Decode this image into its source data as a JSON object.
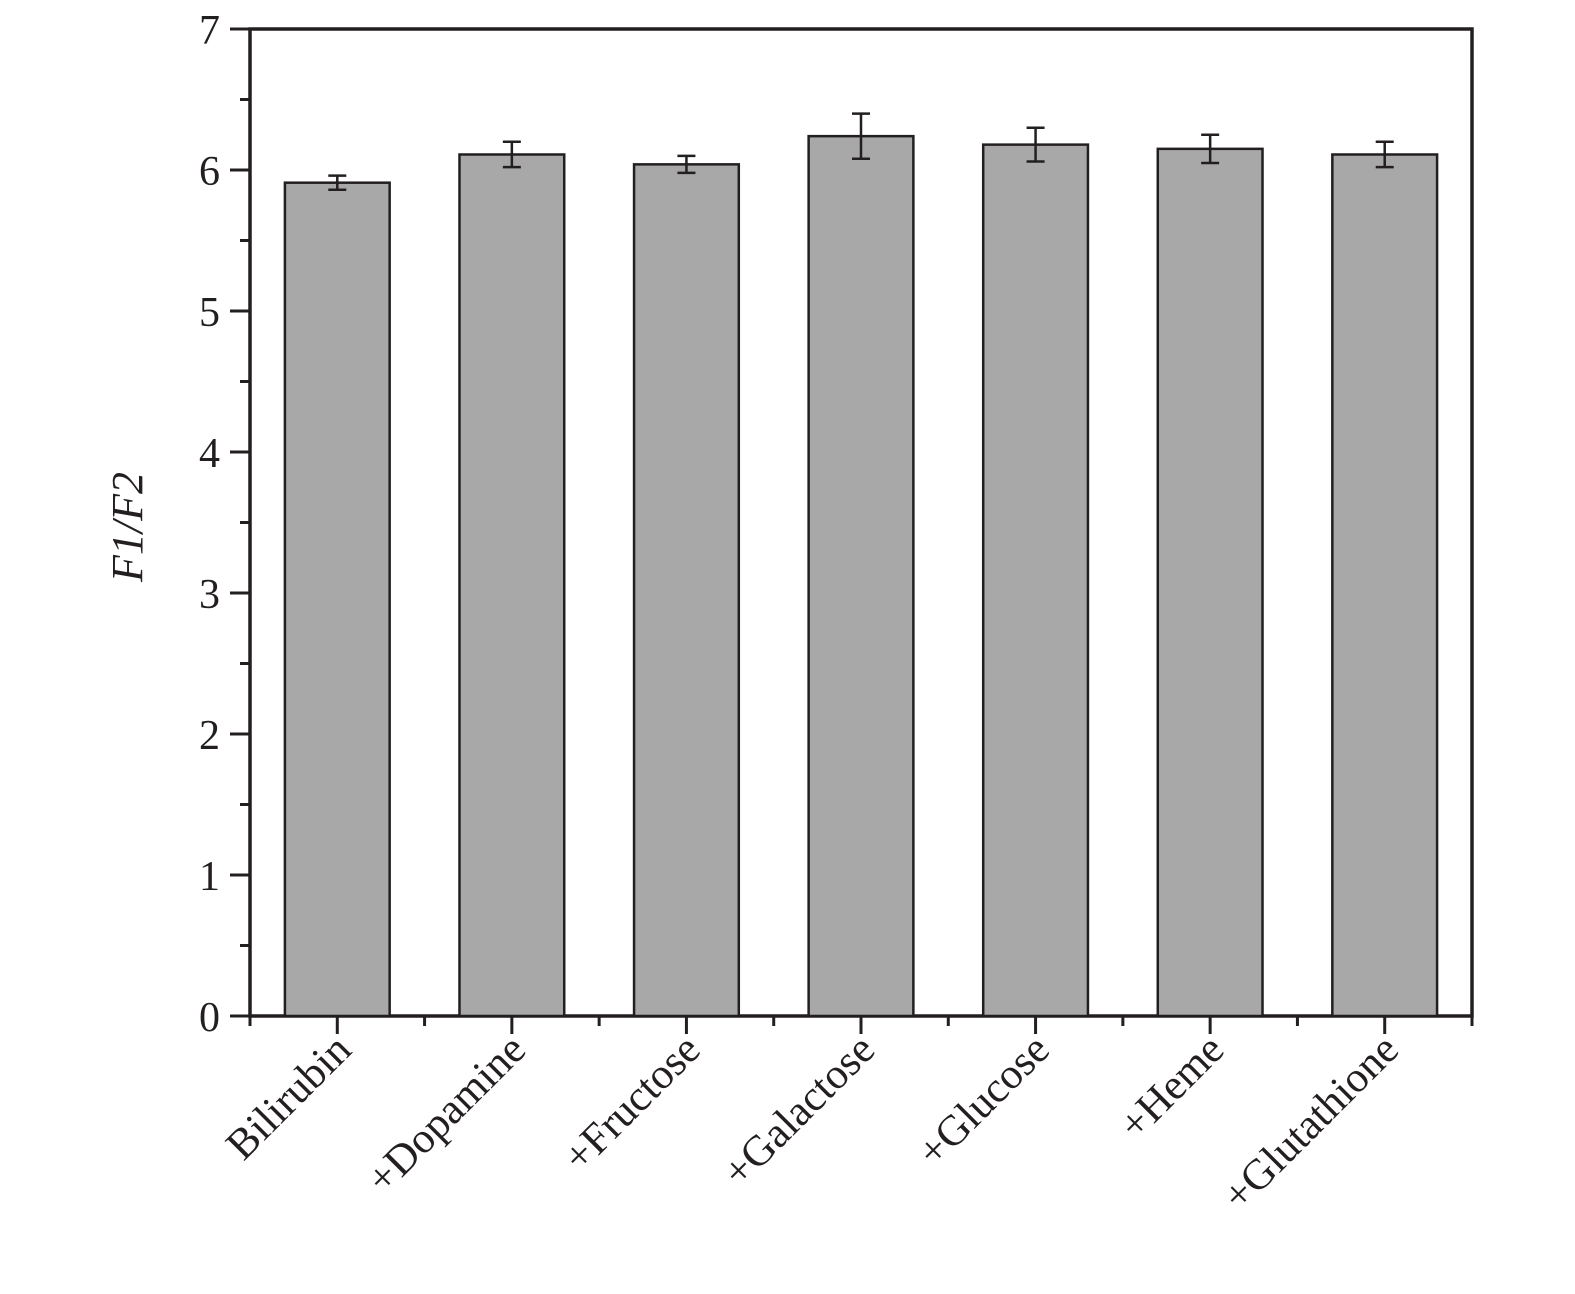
{
  "chart_data": {
    "type": "bar",
    "categories": [
      "Bilirubin",
      "+Dopamine",
      "+Fructose",
      "+Galactose",
      "+Glucose",
      "+Heme",
      "+Glutathione"
    ],
    "values": [
      5.91,
      6.11,
      6.04,
      6.24,
      6.18,
      6.15,
      6.11
    ],
    "errors": [
      0.05,
      0.09,
      0.06,
      0.16,
      0.12,
      0.1,
      0.09
    ],
    "title": "",
    "xlabel": "",
    "ylabel": "F1/F2",
    "ylim": [
      0,
      7
    ],
    "yticks": [
      0,
      1,
      2,
      3,
      4,
      5,
      6,
      7
    ],
    "colors": {
      "bar": "#a8a8a8",
      "axis": "#231f20"
    },
    "grid": false,
    "legend": "none"
  }
}
